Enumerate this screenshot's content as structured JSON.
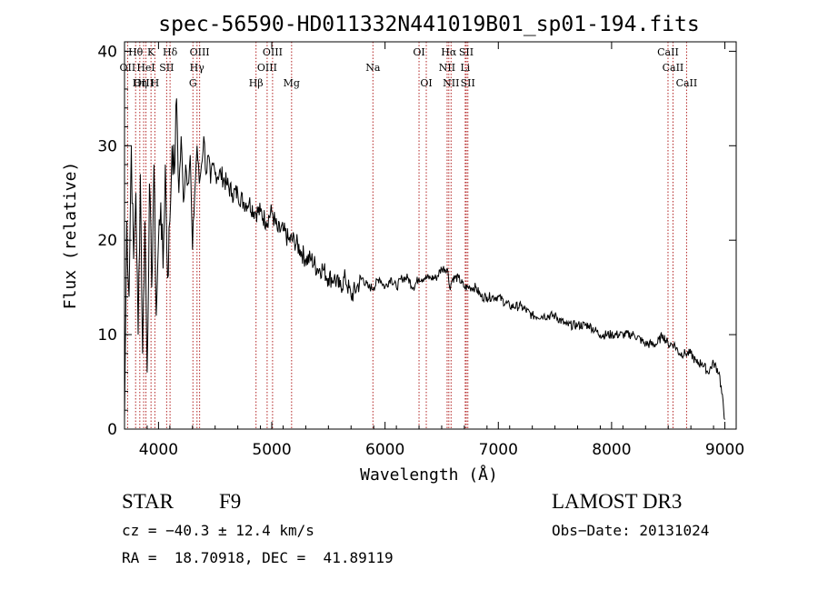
{
  "chart_data": {
    "type": "line",
    "title": "spec-56590-HD011332N441019B01_sp01-194.fits",
    "xlabel": "Wavelength (Å)",
    "ylabel": "Flux (relative)",
    "xlim": [
      3700,
      9100
    ],
    "ylim": [
      0,
      41
    ],
    "xticks": [
      4000,
      5000,
      6000,
      7000,
      8000,
      9000
    ],
    "yticks": [
      0,
      10,
      20,
      30,
      40
    ],
    "series": [
      {
        "name": "flux",
        "x": [
          3700,
          3720,
          3740,
          3760,
          3780,
          3800,
          3820,
          3840,
          3860,
          3880,
          3900,
          3920,
          3940,
          3960,
          3980,
          4000,
          4020,
          4040,
          4060,
          4080,
          4100,
          4120,
          4140,
          4160,
          4180,
          4200,
          4220,
          4240,
          4260,
          4280,
          4300,
          4320,
          4340,
          4360,
          4380,
          4400,
          4420,
          4440,
          4460,
          4480,
          4500,
          4550,
          4600,
          4650,
          4700,
          4750,
          4800,
          4850,
          4900,
          4950,
          5000,
          5050,
          5100,
          5150,
          5200,
          5250,
          5300,
          5350,
          5400,
          5450,
          5500,
          5550,
          5600,
          5650,
          5700,
          5750,
          5800,
          5850,
          5900,
          5950,
          6000,
          6050,
          6100,
          6150,
          6200,
          6250,
          6300,
          6350,
          6400,
          6450,
          6500,
          6550,
          6570,
          6600,
          6650,
          6700,
          6750,
          6800,
          6850,
          6900,
          6950,
          7000,
          7100,
          7200,
          7300,
          7400,
          7500,
          7600,
          7700,
          7800,
          7900,
          8000,
          8100,
          8200,
          8300,
          8400,
          8450,
          8500,
          8550,
          8600,
          8650,
          8700,
          8750,
          8800,
          8850,
          8900,
          8950,
          9000
        ],
        "values": [
          1,
          22,
          14,
          30,
          18,
          25,
          10,
          27,
          8,
          22,
          6,
          26,
          15,
          28,
          12,
          20,
          24,
          17,
          28,
          16,
          22,
          30,
          27,
          35,
          25,
          31,
          24,
          28,
          26,
          29,
          19,
          25,
          30,
          26,
          28,
          31,
          27,
          29,
          26,
          28,
          27,
          27,
          26,
          25,
          25,
          24,
          24,
          23,
          23,
          22,
          23,
          21,
          21,
          20,
          20,
          19,
          18,
          18,
          17,
          17,
          16,
          16,
          15,
          16,
          14,
          15,
          16,
          15,
          15,
          16,
          15,
          16,
          15,
          16,
          16,
          15,
          16,
          16,
          16,
          16,
          17,
          17,
          15,
          16,
          16,
          15,
          15,
          15,
          14,
          14,
          14,
          14,
          13,
          13,
          12,
          12,
          12,
          11,
          11,
          11,
          10,
          10,
          10,
          10,
          9,
          9,
          10,
          9,
          9,
          8,
          8,
          8,
          7,
          7,
          6,
          7,
          6,
          1
        ]
      }
    ],
    "lines": [
      {
        "name": "H-theta",
        "label": "Hθ",
        "x": 3798,
        "row": 0
      },
      {
        "name": "K",
        "label": "K",
        "x": 3934,
        "row": 0
      },
      {
        "name": "H-delta",
        "label": "Hδ",
        "x": 4102,
        "row": 0
      },
      {
        "name": "OIII-4363",
        "label": "OIII",
        "x": 4363,
        "row": 0
      },
      {
        "name": "OIII-5007",
        "label": "OIII",
        "x": 5007,
        "row": 0
      },
      {
        "name": "OI-6300",
        "label": "OI",
        "x": 6300,
        "row": 0
      },
      {
        "name": "H-alpha",
        "label": "Hα",
        "x": 6563,
        "row": 0
      },
      {
        "name": "SII-6717",
        "label": "SII",
        "x": 6717,
        "row": 0
      },
      {
        "name": "CaII-8498",
        "label": "CaII",
        "x": 8498,
        "row": 0
      },
      {
        "name": "OII",
        "label": "OII",
        "x": 3727,
        "row": 1
      },
      {
        "name": "HeI",
        "label": "HeI",
        "x": 3889,
        "row": 1
      },
      {
        "name": "SII-4072",
        "label": "SII",
        "x": 4072,
        "row": 1
      },
      {
        "name": "H-gamma",
        "label": "Hγ",
        "x": 4340,
        "row": 1
      },
      {
        "name": "OIII-4959",
        "label": "OIII",
        "x": 4959,
        "row": 1
      },
      {
        "name": "Na",
        "label": "Na",
        "x": 5893,
        "row": 1
      },
      {
        "name": "NII-6548",
        "label": "NII",
        "x": 6548,
        "row": 1
      },
      {
        "name": "Li",
        "label": "Li",
        "x": 6708,
        "row": 1
      },
      {
        "name": "CaII-8542",
        "label": "CaII",
        "x": 8542,
        "row": 1
      },
      {
        "name": "OIII-3869",
        "label": "OIII",
        "x": 3869,
        "row": 2
      },
      {
        "name": "H-eta",
        "label": "Hη",
        "x": 3835,
        "row": 2
      },
      {
        "name": "H",
        "label": "H",
        "x": 3968,
        "row": 2
      },
      {
        "name": "G",
        "label": "G",
        "x": 4304,
        "row": 2
      },
      {
        "name": "H-beta",
        "label": "Hβ",
        "x": 4861,
        "row": 2
      },
      {
        "name": "Mg",
        "label": "Mg",
        "x": 5175,
        "row": 2
      },
      {
        "name": "OI-6364",
        "label": "OI",
        "x": 6364,
        "row": 2
      },
      {
        "name": "NII-6583",
        "label": "NII",
        "x": 6583,
        "row": 2
      },
      {
        "name": "SII-6731",
        "label": "SII",
        "x": 6731,
        "row": 2
      },
      {
        "name": "CaII-8662",
        "label": "CaII",
        "x": 8662,
        "row": 2
      }
    ]
  },
  "footer": {
    "object_class": "STAR",
    "subclass": "F9",
    "survey": "LAMOST DR3",
    "cz": "cz = −40.3 ± 12.4 km/s",
    "obs_date": "Obs−Date: 20131024",
    "coords": "RA =  18.70918, DEC =  41.89119"
  },
  "colors": {
    "line_marker": "#b22222",
    "spectrum": "#000000"
  }
}
